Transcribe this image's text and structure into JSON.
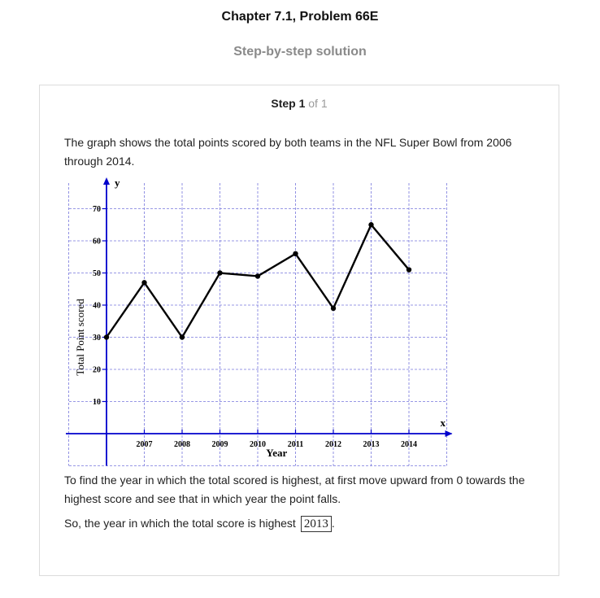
{
  "header": {
    "title": "Chapter 7.1, Problem 66E",
    "subtitle": "Step-by-step solution"
  },
  "step": {
    "label": "Step 1",
    "of_text": "of 1"
  },
  "content": {
    "intro": "The graph shows the total points scored by both teams in the NFL Super Bowl from 2006 through 2014.",
    "explanation": "To find the year in which the total scored is highest, at first move upward from 0 towards the highest score and see that in which year the point falls.",
    "conclusion": "So, the year in which the total score is highest",
    "answer": "2013",
    "end_punct": "."
  },
  "chart_data": {
    "type": "line",
    "x": [
      2006,
      2007,
      2008,
      2009,
      2010,
      2011,
      2012,
      2013,
      2014
    ],
    "x_tick_labels": [
      "2007",
      "2008",
      "2009",
      "2010",
      "2011",
      "2012",
      "2013",
      "2014"
    ],
    "y_ticks": [
      10,
      20,
      30,
      40,
      50,
      60,
      70
    ],
    "series": [
      {
        "values": [
          30,
          47,
          30,
          50,
          49,
          56,
          39,
          65,
          51
        ]
      }
    ],
    "xlabel": "Year",
    "ylabel": "Total Point scored",
    "x_axis_letter": "x",
    "y_axis_letter": "y",
    "xlim": [
      2006,
      2015
    ],
    "ylim": [
      -10,
      80
    ],
    "grid": true,
    "colors": {
      "axis": "#0000cc",
      "grid": "#7777dd",
      "line": "#000000"
    }
  }
}
